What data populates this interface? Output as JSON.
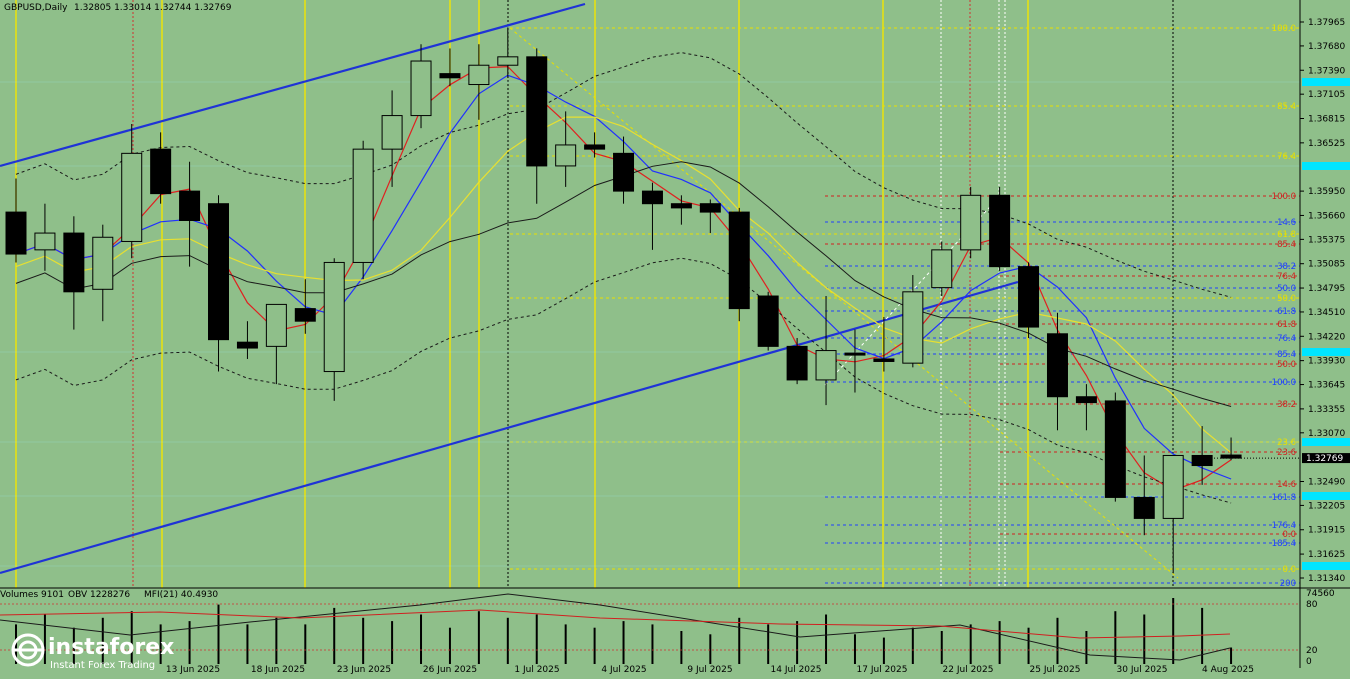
{
  "header": {
    "symbol_title": "GBPUSD,Daily",
    "ohlc": "1.32805 1.33014 1.32744 1.32769"
  },
  "indicator_header": {
    "volumes": "Volumes 9101",
    "obv": "OBV 1228276",
    "mfi": "MFI(21) 40.4930"
  },
  "logo": {
    "name": "instaforex",
    "tagline": "Instant Forex Trading"
  },
  "chart_data": {
    "type": "candlestick",
    "title": "GBPUSD,Daily",
    "price_axis_labels": [
      "1.37965",
      "1.37680",
      "1.37390",
      "1.37105",
      "1.36815",
      "1.36525",
      "1.35950",
      "1.35660",
      "1.35375",
      "1.35085",
      "1.34795",
      "1.34510",
      "1.34220",
      "1.33930",
      "1.33645",
      "1.33355",
      "1.33070",
      "1.32490",
      "1.32205",
      "1.31915",
      "1.31625",
      "1.31340"
    ],
    "current_price_label": "1.32769",
    "date_labels": [
      "13 Jun 2025",
      "18 Jun 2025",
      "23 Jun 2025",
      "26 Jun 2025",
      "1 Jul 2025",
      "4 Jul 2025",
      "9 Jul 2025",
      "14 Jul 2025",
      "17 Jul 2025",
      "22 Jul 2025",
      "25 Jul 2025",
      "30 Jul 2025",
      "4 Aug 2025"
    ],
    "indicator_axis_labels": [
      "74560",
      "80",
      "20",
      "0"
    ],
    "candles": [
      {
        "o": 1.357,
        "h": 1.361,
        "l": 1.351,
        "c": 1.352
      },
      {
        "o": 1.3525,
        "h": 1.358,
        "l": 1.35,
        "c": 1.3545
      },
      {
        "o": 1.3545,
        "h": 1.3565,
        "l": 1.343,
        "c": 1.3475
      },
      {
        "o": 1.3478,
        "h": 1.3555,
        "l": 1.344,
        "c": 1.354
      },
      {
        "o": 1.3535,
        "h": 1.3675,
        "l": 1.3515,
        "c": 1.364
      },
      {
        "o": 1.3645,
        "h": 1.3665,
        "l": 1.358,
        "c": 1.3592
      },
      {
        "o": 1.3595,
        "h": 1.363,
        "l": 1.3505,
        "c": 1.356
      },
      {
        "o": 1.358,
        "h": 1.359,
        "l": 1.338,
        "c": 1.3418
      },
      {
        "o": 1.3415,
        "h": 1.344,
        "l": 1.3395,
        "c": 1.3408
      },
      {
        "o": 1.341,
        "h": 1.346,
        "l": 1.3365,
        "c": 1.346
      },
      {
        "o": 1.3455,
        "h": 1.349,
        "l": 1.3425,
        "c": 1.344
      },
      {
        "o": 1.338,
        "h": 1.3515,
        "l": 1.3345,
        "c": 1.351
      },
      {
        "o": 1.351,
        "h": 1.3655,
        "l": 1.349,
        "c": 1.3645
      },
      {
        "o": 1.3645,
        "h": 1.3715,
        "l": 1.36,
        "c": 1.3685
      },
      {
        "o": 1.3685,
        "h": 1.377,
        "l": 1.367,
        "c": 1.375
      },
      {
        "o": 1.3735,
        "h": 1.3765,
        "l": 1.372,
        "c": 1.373
      },
      {
        "o": 1.3722,
        "h": 1.377,
        "l": 1.368,
        "c": 1.3745
      },
      {
        "o": 1.3745,
        "h": 1.379,
        "l": 1.373,
        "c": 1.3755
      },
      {
        "o": 1.3755,
        "h": 1.3765,
        "l": 1.358,
        "c": 1.3625
      },
      {
        "o": 1.3625,
        "h": 1.369,
        "l": 1.36,
        "c": 1.365
      },
      {
        "o": 1.365,
        "h": 1.3665,
        "l": 1.3635,
        "c": 1.3645
      },
      {
        "o": 1.364,
        "h": 1.366,
        "l": 1.358,
        "c": 1.3595
      },
      {
        "o": 1.3595,
        "h": 1.3605,
        "l": 1.3525,
        "c": 1.358
      },
      {
        "o": 1.358,
        "h": 1.359,
        "l": 1.3555,
        "c": 1.3575
      },
      {
        "o": 1.358,
        "h": 1.3585,
        "l": 1.3545,
        "c": 1.357
      },
      {
        "o": 1.357,
        "h": 1.3575,
        "l": 1.344,
        "c": 1.3455
      },
      {
        "o": 1.347,
        "h": 1.3475,
        "l": 1.3405,
        "c": 1.341
      },
      {
        "o": 1.341,
        "h": 1.342,
        "l": 1.3365,
        "c": 1.337
      },
      {
        "o": 1.337,
        "h": 1.347,
        "l": 1.334,
        "c": 1.3405
      },
      {
        "o": 1.3402,
        "h": 1.343,
        "l": 1.3355,
        "c": 1.34
      },
      {
        "o": 1.3395,
        "h": 1.3445,
        "l": 1.338,
        "c": 1.3392
      },
      {
        "o": 1.339,
        "h": 1.3495,
        "l": 1.3385,
        "c": 1.3475
      },
      {
        "o": 1.348,
        "h": 1.3535,
        "l": 1.347,
        "c": 1.3525
      },
      {
        "o": 1.3525,
        "h": 1.36,
        "l": 1.3515,
        "c": 1.359
      },
      {
        "o": 1.359,
        "h": 1.36,
        "l": 1.35,
        "c": 1.3505
      },
      {
        "o": 1.3505,
        "h": 1.351,
        "l": 1.342,
        "c": 1.3433
      },
      {
        "o": 1.3425,
        "h": 1.345,
        "l": 1.331,
        "c": 1.335
      },
      {
        "o": 1.335,
        "h": 1.3365,
        "l": 1.331,
        "c": 1.3343
      },
      {
        "o": 1.3345,
        "h": 1.3355,
        "l": 1.3225,
        "c": 1.323
      },
      {
        "o": 1.323,
        "h": 1.328,
        "l": 1.3185,
        "c": 1.3205
      },
      {
        "o": 1.3205,
        "h": 1.328,
        "l": 1.314,
        "c": 1.328
      },
      {
        "o": 1.328,
        "h": 1.3315,
        "l": 1.3245,
        "c": 1.3268
      },
      {
        "o": 1.32805,
        "h": 1.33014,
        "l": 1.32744,
        "c": 1.32769
      }
    ],
    "fib_levels": [
      {
        "label": "100.0",
        "color": "#e8e000"
      },
      {
        "label": "85.4",
        "color": "#e8e000"
      },
      {
        "label": "76.4",
        "color": "#e8e000"
      },
      {
        "label": "100.0",
        "color": "#d02020"
      },
      {
        "label": "14.6",
        "color": "#2040ff"
      },
      {
        "label": "61.8",
        "color": "#e8e000"
      },
      {
        "label": "85.4",
        "color": "#d02020"
      },
      {
        "label": "38.2",
        "color": "#2040ff"
      },
      {
        "label": "76.4",
        "color": "#d02020"
      },
      {
        "label": "50.0",
        "color": "#2040ff"
      },
      {
        "label": "50.0",
        "color": "#e8e000"
      },
      {
        "label": "61.8",
        "color": "#2040ff"
      },
      {
        "label": "61.8",
        "color": "#d02020"
      },
      {
        "label": "76.4",
        "color": "#2040ff"
      },
      {
        "label": "85.4",
        "color": "#2040ff"
      },
      {
        "label": "50.0",
        "color": "#d02020"
      },
      {
        "label": "100.0",
        "color": "#2040ff"
      },
      {
        "label": "38.2",
        "color": "#d02020"
      },
      {
        "label": "23.6",
        "color": "#e8e000"
      },
      {
        "label": "23.6",
        "color": "#d02020"
      },
      {
        "label": "14.6",
        "color": "#d02020"
      },
      {
        "label": "161.8",
        "color": "#2040ff"
      },
      {
        "label": "176.4",
        "color": "#2040ff"
      },
      {
        "label": "0.0",
        "color": "#d02020"
      },
      {
        "label": "185.4",
        "color": "#2040ff"
      },
      {
        "label": "0.0",
        "color": "#e8e000"
      },
      {
        "label": "200",
        "color": "#2040ff"
      }
    ],
    "colors": {
      "background": "#8fbf8a",
      "bull_candle": "#8fbf8a",
      "bear_candle": "#000000",
      "trend_line": "#1f33d6",
      "ma_red": "#e02020",
      "ma_blue": "#2030ff",
      "ma_yellow": "#e8e030",
      "ma_black": "#1a1a1a",
      "cyan_marker": "#00e5ff"
    }
  }
}
